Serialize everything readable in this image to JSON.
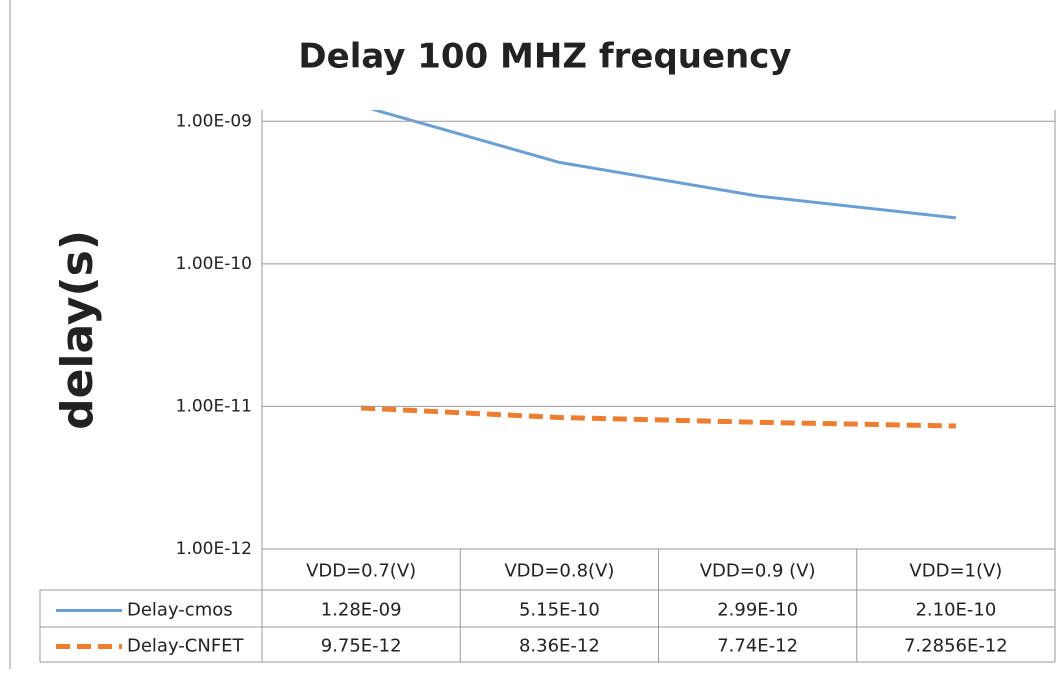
{
  "chart_data": {
    "type": "line",
    "title": "Delay 100 MHZ frequency",
    "y_label": "delay(s)",
    "categories": [
      "VDD=0.7(V)",
      "VDD=0.8(V)",
      "VDD=0.9 (V)",
      "VDD=1(V)"
    ],
    "log_scale": true,
    "grid": true,
    "ylim": [
      1e-12,
      1.2e-09
    ],
    "yticks": [
      {
        "value": 1e-12,
        "label": "1.00E-12"
      },
      {
        "value": 1e-11,
        "label": "1.00E-11"
      },
      {
        "value": 1e-10,
        "label": "1.00E-10"
      },
      {
        "value": 1e-09,
        "label": "1.00E-09"
      }
    ],
    "series": [
      {
        "name": "Delay-cmos",
        "color": "#6a9fd6",
        "dashed": false,
        "values": [
          1.28e-09,
          5.15e-10,
          2.99e-10,
          2.1e-10
        ],
        "value_labels": [
          "1.28E-09",
          "5.15E-10",
          "2.99E-10",
          "2.10E-10"
        ]
      },
      {
        "name": "Delay-CNFET",
        "color": "#ed7d31",
        "dashed": true,
        "values": [
          9.75e-12,
          8.36e-12,
          7.74e-12,
          7.2856e-12
        ],
        "value_labels": [
          "9.75E-12",
          "8.36E-12",
          "7.74E-12",
          "7.2856E-12"
        ]
      }
    ]
  }
}
